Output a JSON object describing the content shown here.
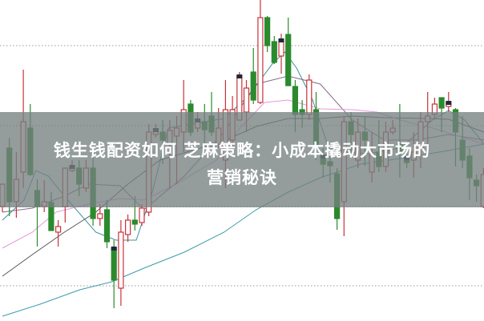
{
  "title": {
    "line1": "钱生钱配资如何 芝麻策略：小成本撬动大市场的",
    "line2": "营销秘诀"
  },
  "colors": {
    "up": "#c8323a",
    "down": "#2b8a2e",
    "banner": "#768080",
    "marker": "#1e2a3a",
    "grid": "#9a9a9a",
    "ma": [
      "#3d8f9a",
      "#8a6a8a",
      "#555555",
      "#e39ad8",
      "#3e9aa8"
    ]
  },
  "chart_data": {
    "type": "candlestick",
    "grid": "horizontal-dotted",
    "ohlc_order": [
      "open",
      "high",
      "low",
      "close"
    ],
    "candles": [
      [
        142,
        170,
        135,
        170
      ],
      [
        215,
        228,
        130,
        148
      ],
      [
        148,
        210,
        128,
        176
      ],
      [
        185,
        313,
        165,
        248
      ],
      [
        240,
        270,
        180,
        182
      ],
      [
        162,
        176,
        92,
        142
      ],
      [
        142,
        175,
        135,
        148
      ],
      [
        147,
        160,
        112,
        112
      ],
      [
        110,
        125,
        92,
        117
      ],
      [
        142,
        190,
        122,
        190
      ],
      [
        187,
        200,
        185,
        192
      ],
      [
        190,
        200,
        155,
        170
      ],
      [
        165,
        200,
        160,
        190
      ],
      [
        190,
        220,
        118,
        127
      ],
      [
        127,
        145,
        118,
        133
      ],
      [
        138,
        150,
        90,
        98
      ],
      [
        90,
        100,
        15,
        50
      ],
      [
        40,
        125,
        18,
        110
      ],
      [
        107,
        132,
        98,
        125
      ],
      [
        125,
        155,
        112,
        120
      ],
      [
        122,
        145,
        118,
        140
      ],
      [
        135,
        245,
        130,
        235
      ],
      [
        232,
        245,
        228,
        238
      ],
      [
        235,
        250,
        195,
        225
      ],
      [
        220,
        250,
        165,
        237
      ],
      [
        230,
        255,
        170,
        240
      ],
      [
        235,
        300,
        210,
        263
      ],
      [
        270,
        275,
        230,
        235
      ],
      [
        240,
        260,
        235,
        250
      ],
      [
        248,
        270,
        205,
        238
      ],
      [
        255,
        285,
        230,
        235
      ],
      [
        220,
        265,
        215,
        240
      ],
      [
        200,
        300,
        165,
        263
      ],
      [
        225,
        280,
        210,
        263
      ],
      [
        250,
        310,
        250,
        305
      ],
      [
        260,
        300,
        235,
        290
      ],
      [
        310,
        340,
        270,
        275
      ],
      [
        272,
        400,
        270,
        378
      ],
      [
        378,
        380,
        335,
        343
      ],
      [
        348,
        355,
        320,
        322
      ],
      [
        330,
        358,
        308,
        350
      ],
      [
        357,
        378,
        293,
        293
      ],
      [
        292,
        300,
        235,
        257
      ],
      [
        263,
        275,
        240,
        257
      ],
      [
        257,
        307,
        250,
        300
      ],
      [
        263,
        285,
        200,
        215
      ],
      [
        205,
        215,
        178,
        195
      ],
      [
        198,
        210,
        172,
        193
      ],
      [
        183,
        190,
        113,
        127
      ],
      [
        148,
        255,
        105,
        248
      ],
      [
        248,
        260,
        210,
        232
      ],
      [
        200,
        252,
        190,
        235
      ],
      [
        235,
        255,
        193,
        225
      ],
      [
        185,
        235,
        172,
        207
      ],
      [
        210,
        250,
        185,
        192
      ],
      [
        192,
        248,
        185,
        235
      ],
      [
        235,
        250,
        232,
        240
      ],
      [
        220,
        270,
        178,
        210
      ],
      [
        203,
        210,
        190,
        197
      ],
      [
        200,
        235,
        178,
        210
      ],
      [
        215,
        260,
        190,
        248
      ],
      [
        248,
        285,
        210,
        255
      ],
      [
        257,
        278,
        252,
        270
      ],
      [
        278,
        278,
        235,
        265
      ],
      [
        267,
        285,
        260,
        272
      ],
      [
        263,
        265,
        192,
        235
      ],
      [
        225,
        255,
        190,
        200
      ],
      [
        205,
        215,
        150,
        178
      ],
      [
        175,
        182,
        148,
        168
      ],
      [
        142,
        190,
        140,
        182
      ]
    ],
    "marked_candles": [
      10,
      16,
      22,
      28,
      34,
      40,
      46,
      58,
      64
    ],
    "moving_averages": [
      [
        [
          0,
          125
        ],
        [
          3.1,
          150
        ],
        [
          4.8,
          187
        ],
        [
          6.6,
          180
        ],
        [
          8.9,
          155
        ],
        [
          13.4,
          110
        ],
        [
          16.3,
          100
        ],
        [
          19.2,
          100
        ],
        [
          21.5,
          160
        ],
        [
          23.8,
          240
        ],
        [
          27.2,
          245
        ],
        [
          31.8,
          252
        ],
        [
          35.3,
          280
        ],
        [
          38.7,
          320
        ],
        [
          40.5,
          335
        ],
        [
          42.2,
          315
        ],
        [
          44.5,
          275
        ],
        [
          46.8,
          215
        ],
        [
          49.1,
          210
        ],
        [
          52.5,
          208
        ],
        [
          57.1,
          215
        ],
        [
          61.7,
          250
        ],
        [
          64,
          262
        ],
        [
          66.3,
          250
        ],
        [
          69.1,
          220
        ]
      ],
      [
        [
          0,
          135
        ],
        [
          4.3,
          140
        ],
        [
          8.9,
          155
        ],
        [
          12.3,
          170
        ],
        [
          16.9,
          168
        ],
        [
          20.3,
          138
        ],
        [
          26.1,
          180
        ],
        [
          31.8,
          235
        ],
        [
          36.4,
          295
        ],
        [
          41,
          305
        ],
        [
          45.6,
          295
        ],
        [
          50.2,
          250
        ],
        [
          54.8,
          225
        ],
        [
          59.4,
          225
        ],
        [
          64,
          232
        ],
        [
          69.1,
          225
        ]
      ],
      [
        [
          0,
          55
        ],
        [
          4.3,
          82
        ],
        [
          8.9,
          110
        ],
        [
          13.4,
          135
        ],
        [
          18,
          170
        ],
        [
          22.6,
          200
        ],
        [
          27.2,
          212
        ],
        [
          31.8,
          224
        ],
        [
          36.4,
          242
        ],
        [
          41,
          252
        ],
        [
          45.6,
          252
        ],
        [
          50.2,
          255
        ],
        [
          54.8,
          253
        ],
        [
          60.6,
          252
        ],
        [
          64,
          251
        ],
        [
          69.1,
          235
        ]
      ],
      [
        [
          0,
          90
        ],
        [
          4.3,
          110
        ],
        [
          7.7,
          135
        ],
        [
          12.3,
          145
        ],
        [
          16.9,
          152
        ],
        [
          20.3,
          150
        ],
        [
          24.9,
          170
        ],
        [
          30.7,
          200
        ],
        [
          34.1,
          240
        ],
        [
          37.6,
          272
        ],
        [
          41,
          275
        ],
        [
          45.6,
          264
        ],
        [
          50.2,
          263
        ],
        [
          53.7,
          260
        ],
        [
          57.1,
          250
        ],
        [
          61.7,
          240
        ],
        [
          69.1,
          220
        ]
      ],
      [
        [
          0,
          5
        ],
        [
          5.4,
          20
        ],
        [
          11.1,
          38
        ],
        [
          15.7,
          48
        ],
        [
          20.3,
          65
        ],
        [
          26.1,
          85
        ],
        [
          31.8,
          110
        ],
        [
          36.4,
          138
        ],
        [
          41,
          160
        ],
        [
          45.6,
          178
        ],
        [
          51.4,
          195
        ],
        [
          57.1,
          202
        ],
        [
          64,
          212
        ],
        [
          69.1,
          220
        ]
      ]
    ]
  }
}
